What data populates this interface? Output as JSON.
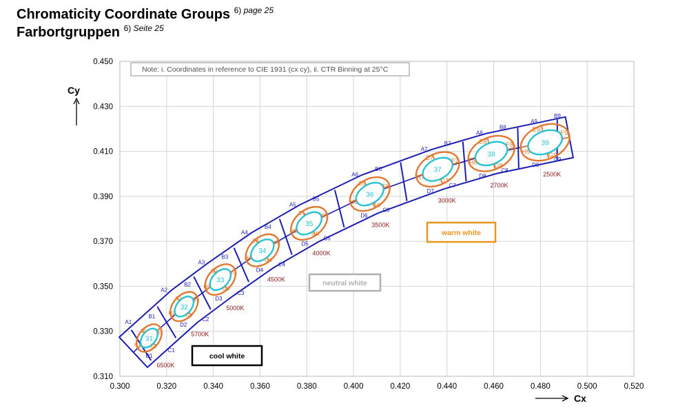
{
  "header": {
    "title_en": "Chromaticity Coordinate Groups",
    "ref_en": "6)",
    "page_en": "page 25",
    "title_de": "Farbortgruppen",
    "ref_de": "6)",
    "page_de": "Seite 25"
  },
  "chart_data": {
    "type": "scatter",
    "xlabel": "Cx",
    "ylabel": "Cy",
    "xlim": [
      0.3,
      0.52
    ],
    "ylim": [
      0.31,
      0.45
    ],
    "x_ticks": [
      "0.300",
      "0.320",
      "0.340",
      "0.360",
      "0.380",
      "0.400",
      "0.420",
      "0.440",
      "0.460",
      "0.480",
      "0.500",
      "0.520"
    ],
    "y_ticks": [
      "0.310",
      "0.330",
      "0.350",
      "0.370",
      "0.390",
      "0.410",
      "0.430",
      "0.450"
    ],
    "grid": true,
    "note": "Note: i. Coordinates in reference to CIE 1931 (cx cy), ii. CTR Binning at 25°C",
    "zones": [
      {
        "label": "cool white",
        "color": "#000000"
      },
      {
        "label": "neutral white",
        "color": "#b0b0b0"
      },
      {
        "label": "warm white",
        "color": "#e8961e"
      }
    ],
    "colors": {
      "bins": "#1c1cb0",
      "large_ellipse": "#e07830",
      "small_ellipse": "#27c3d3",
      "cct_label": "#8b1a1a",
      "code_text": "#e07830"
    },
    "groups": [
      {
        "id": "31",
        "cx": 0.3125,
        "cy": 0.327,
        "cct": "6500K",
        "bins": [
          "A1",
          "B1",
          "C1",
          "D1"
        ],
        "sub": [
          "E1",
          "F1",
          "G1",
          "H1"
        ]
      },
      {
        "id": "32",
        "cx": 0.3275,
        "cy": 0.341,
        "cct": "5700K",
        "bins": [
          "A2",
          "B2",
          "C2",
          "D2"
        ],
        "sub": [
          "E2",
          "F2",
          "G2",
          "H2"
        ]
      },
      {
        "id": "33",
        "cx": 0.343,
        "cy": 0.353,
        "cct": "5000K",
        "bins": [
          "A3",
          "B3",
          "C3",
          "D3"
        ],
        "sub": [
          "E3",
          "F3",
          "G3",
          "H3"
        ]
      },
      {
        "id": "34",
        "cx": 0.361,
        "cy": 0.366,
        "cct": "4500K",
        "bins": [
          "A4",
          "B4",
          "C4",
          "D4"
        ],
        "sub": [
          "E4",
          "F4",
          "G4",
          "H4"
        ]
      },
      {
        "id": "35",
        "cx": 0.381,
        "cy": 0.378,
        "cct": "4000K",
        "bins": [
          "A5",
          "B5",
          "C5",
          "D5"
        ],
        "sub": [
          "E5",
          "F5",
          "G5",
          "H5"
        ]
      },
      {
        "id": "36",
        "cx": 0.407,
        "cy": 0.391,
        "cct": "3500K",
        "bins": [
          "A6",
          "B6",
          "C6",
          "D6"
        ],
        "sub": [
          "E6",
          "F6",
          "G6",
          "H6"
        ]
      },
      {
        "id": "37",
        "cx": 0.436,
        "cy": 0.402,
        "cct": "3000K",
        "bins": [
          "A7",
          "B7",
          "C7",
          "D7"
        ],
        "sub": [
          "E7",
          "F7",
          "G7",
          "H7"
        ]
      },
      {
        "id": "38",
        "cx": 0.459,
        "cy": 0.409,
        "cct": "2700K",
        "bins": [
          "A8",
          "B8",
          "C8",
          "D8"
        ],
        "sub": [
          "E8",
          "F8",
          "G8",
          "H8"
        ]
      },
      {
        "id": "39",
        "cx": 0.482,
        "cy": 0.414,
        "cct": "2500K",
        "bins": [
          "A9",
          "B9",
          "C9",
          "D9"
        ],
        "sub": [
          "E9",
          "F9",
          "G9",
          "H9"
        ]
      }
    ]
  }
}
